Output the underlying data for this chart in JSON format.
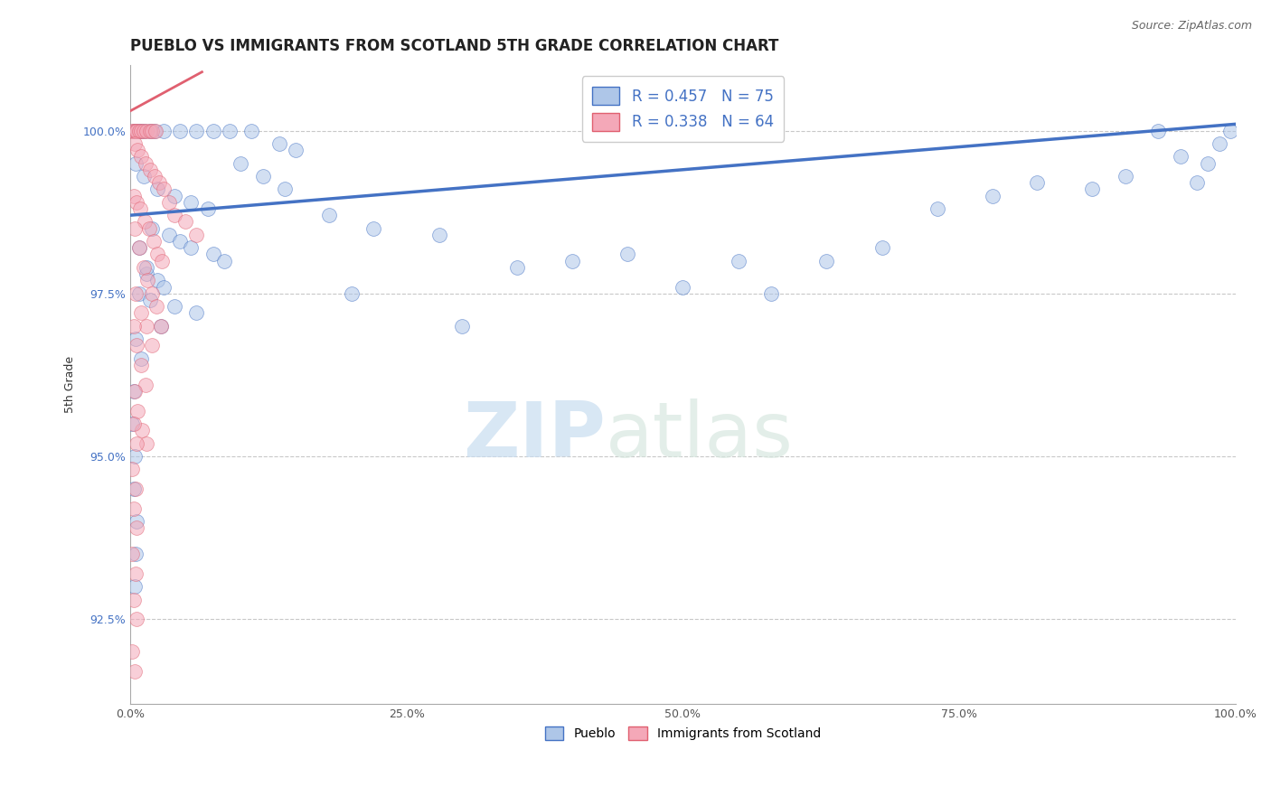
{
  "title": "PUEBLO VS IMMIGRANTS FROM SCOTLAND 5TH GRADE CORRELATION CHART",
  "source": "Source: ZipAtlas.com",
  "ylabel": "5th Grade",
  "watermark_zip": "ZIP",
  "watermark_atlas": "atlas",
  "legend_entries": [
    {
      "label": "Pueblo",
      "R": 0.457,
      "N": 75
    },
    {
      "label": "Immigrants from Scotland",
      "R": 0.338,
      "N": 64
    }
  ],
  "xlim": [
    0.0,
    100.0
  ],
  "ylim": [
    91.2,
    101.0
  ],
  "yticks": [
    92.5,
    95.0,
    97.5,
    100.0
  ],
  "xticks": [
    0.0,
    25.0,
    50.0,
    75.0,
    100.0
  ],
  "blue_scatter": [
    [
      0.3,
      100.0
    ],
    [
      0.5,
      100.0
    ],
    [
      0.8,
      100.0
    ],
    [
      1.0,
      100.0
    ],
    [
      1.3,
      100.0
    ],
    [
      1.8,
      100.0
    ],
    [
      2.2,
      100.0
    ],
    [
      3.0,
      100.0
    ],
    [
      4.5,
      100.0
    ],
    [
      6.0,
      100.0
    ],
    [
      7.5,
      100.0
    ],
    [
      9.0,
      100.0
    ],
    [
      11.0,
      100.0
    ],
    [
      13.5,
      99.8
    ],
    [
      15.0,
      99.7
    ],
    [
      0.5,
      99.5
    ],
    [
      1.2,
      99.3
    ],
    [
      2.5,
      99.1
    ],
    [
      4.0,
      99.0
    ],
    [
      5.5,
      98.9
    ],
    [
      7.0,
      98.8
    ],
    [
      2.0,
      98.5
    ],
    [
      3.5,
      98.4
    ],
    [
      4.5,
      98.3
    ],
    [
      5.5,
      98.2
    ],
    [
      7.5,
      98.1
    ],
    [
      8.5,
      98.0
    ],
    [
      1.5,
      97.8
    ],
    [
      2.5,
      97.7
    ],
    [
      3.0,
      97.6
    ],
    [
      0.8,
      97.5
    ],
    [
      1.8,
      97.4
    ],
    [
      4.0,
      97.3
    ],
    [
      6.0,
      97.2
    ],
    [
      0.5,
      96.8
    ],
    [
      1.0,
      96.5
    ],
    [
      0.3,
      96.0
    ],
    [
      10.0,
      99.5
    ],
    [
      12.0,
      99.3
    ],
    [
      14.0,
      99.1
    ],
    [
      18.0,
      98.7
    ],
    [
      22.0,
      98.5
    ],
    [
      28.0,
      98.4
    ],
    [
      35.0,
      97.9
    ],
    [
      40.0,
      98.0
    ],
    [
      45.0,
      98.1
    ],
    [
      50.0,
      97.6
    ],
    [
      55.0,
      98.0
    ],
    [
      58.0,
      97.5
    ],
    [
      63.0,
      98.0
    ],
    [
      68.0,
      98.2
    ],
    [
      73.0,
      98.8
    ],
    [
      78.0,
      99.0
    ],
    [
      82.0,
      99.2
    ],
    [
      87.0,
      99.1
    ],
    [
      90.0,
      99.3
    ],
    [
      93.0,
      100.0
    ],
    [
      95.0,
      99.6
    ],
    [
      96.5,
      99.2
    ],
    [
      97.5,
      99.5
    ],
    [
      98.5,
      99.8
    ],
    [
      99.5,
      100.0
    ],
    [
      0.2,
      95.5
    ],
    [
      0.4,
      95.0
    ],
    [
      0.3,
      94.5
    ],
    [
      0.6,
      94.0
    ],
    [
      0.5,
      93.5
    ],
    [
      0.4,
      93.0
    ],
    [
      0.8,
      98.2
    ],
    [
      1.5,
      97.9
    ],
    [
      2.8,
      97.0
    ],
    [
      20.0,
      97.5
    ],
    [
      30.0,
      97.0
    ]
  ],
  "pink_scatter": [
    [
      0.2,
      100.0
    ],
    [
      0.3,
      100.0
    ],
    [
      0.5,
      100.0
    ],
    [
      0.6,
      100.0
    ],
    [
      0.8,
      100.0
    ],
    [
      1.0,
      100.0
    ],
    [
      1.2,
      100.0
    ],
    [
      1.5,
      100.0
    ],
    [
      1.8,
      100.0
    ],
    [
      2.0,
      100.0
    ],
    [
      2.3,
      100.0
    ],
    [
      0.4,
      99.8
    ],
    [
      0.7,
      99.7
    ],
    [
      1.0,
      99.6
    ],
    [
      1.4,
      99.5
    ],
    [
      1.8,
      99.4
    ],
    [
      2.2,
      99.3
    ],
    [
      2.6,
      99.2
    ],
    [
      3.0,
      99.1
    ],
    [
      0.3,
      99.0
    ],
    [
      0.6,
      98.9
    ],
    [
      0.9,
      98.8
    ],
    [
      1.3,
      98.6
    ],
    [
      1.7,
      98.5
    ],
    [
      2.1,
      98.3
    ],
    [
      2.5,
      98.1
    ],
    [
      2.9,
      98.0
    ],
    [
      0.4,
      98.5
    ],
    [
      0.8,
      98.2
    ],
    [
      1.2,
      97.9
    ],
    [
      1.6,
      97.7
    ],
    [
      2.0,
      97.5
    ],
    [
      2.4,
      97.3
    ],
    [
      2.8,
      97.0
    ],
    [
      0.5,
      97.5
    ],
    [
      1.0,
      97.2
    ],
    [
      1.5,
      97.0
    ],
    [
      2.0,
      96.7
    ],
    [
      0.3,
      97.0
    ],
    [
      0.6,
      96.7
    ],
    [
      1.0,
      96.4
    ],
    [
      1.4,
      96.1
    ],
    [
      0.4,
      96.0
    ],
    [
      0.7,
      95.7
    ],
    [
      1.1,
      95.4
    ],
    [
      1.5,
      95.2
    ],
    [
      0.3,
      95.5
    ],
    [
      0.6,
      95.2
    ],
    [
      0.2,
      94.8
    ],
    [
      0.5,
      94.5
    ],
    [
      0.3,
      94.2
    ],
    [
      0.6,
      93.9
    ],
    [
      0.2,
      93.5
    ],
    [
      0.5,
      93.2
    ],
    [
      0.3,
      92.8
    ],
    [
      0.6,
      92.5
    ],
    [
      0.2,
      92.0
    ],
    [
      0.4,
      91.7
    ],
    [
      3.5,
      98.9
    ],
    [
      4.0,
      98.7
    ],
    [
      5.0,
      98.6
    ],
    [
      6.0,
      98.4
    ]
  ],
  "blue_line": {
    "x0": 0.0,
    "y0": 98.7,
    "x1": 100.0,
    "y1": 100.1
  },
  "pink_line": {
    "x0": 0.0,
    "y0": 100.3,
    "x1": 6.5,
    "y1": 100.9
  },
  "blue_color": "#4472c4",
  "pink_color": "#e06070",
  "blue_fill": "#aec6e8",
  "pink_fill": "#f4a8b8",
  "grid_color": "#c8c8c8",
  "background_color": "#ffffff",
  "title_fontsize": 12,
  "axis_label_fontsize": 9,
  "tick_fontsize": 9,
  "legend_fontsize": 12,
  "scatter_size": 130,
  "scatter_alpha": 0.55
}
